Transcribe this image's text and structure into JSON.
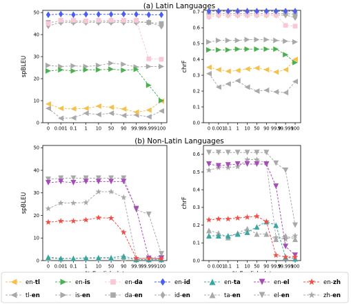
{
  "titles": [
    "(a) Latin Languages",
    "(b) Non-Latin Languages"
  ],
  "x_label": "x% English data",
  "chart_data": [
    {
      "type": "line",
      "title": "(a) Latin Languages",
      "xlabel": "",
      "ylabel": "spBLEU",
      "ylim": [
        0,
        51
      ],
      "yticks": [
        0,
        10,
        20,
        30,
        40,
        50
      ],
      "categories": [
        "0",
        "0.001",
        "0.1",
        "1",
        "10",
        "50",
        "90",
        "99.9",
        "99.999",
        "100"
      ],
      "series": [
        {
          "name": "en-tl",
          "values": [
            8.5,
            6.5,
            6.3,
            6.5,
            7.5,
            7.0,
            6.2,
            4.8,
            5.7,
            9.8
          ]
        },
        {
          "name": "tl-en",
          "values": [
            6.5,
            2.0,
            2.2,
            4.3,
            3.7,
            4.3,
            3.3,
            3.5,
            2.7,
            5.3
          ]
        },
        {
          "name": "en-is",
          "values": [
            23.5,
            24.0,
            23.5,
            24.0,
            24.0,
            24.3,
            23.8,
            24.2,
            17.0,
            10.0
          ]
        },
        {
          "name": "is-en",
          "values": [
            26.0,
            25.5,
            25.8,
            25.5,
            26.0,
            27.0,
            26.5,
            25.3,
            25.5,
            25.5
          ]
        },
        {
          "name": "en-da",
          "values": [
            45.0,
            46.5,
            46.5,
            46.2,
            46.5,
            46.5,
            46.5,
            46.5,
            29.0,
            28.8
          ]
        },
        {
          "name": "da-en",
          "values": [
            45.5,
            46.0,
            46.0,
            46.0,
            46.0,
            46.0,
            46.2,
            46.0,
            45.5,
            45.0
          ]
        },
        {
          "name": "en-id",
          "values": [
            49.0,
            49.3,
            49.0,
            49.2,
            49.2,
            49.2,
            49.3,
            49.2,
            49.0,
            49.0
          ]
        },
        {
          "name": "id-en",
          "values": [
            44.0,
            45.5,
            45.5,
            45.5,
            45.5,
            45.5,
            45.5,
            45.5,
            45.5,
            43.8
          ]
        }
      ]
    },
    {
      "type": "line",
      "xlabel": "",
      "ylabel": "chrF",
      "ylim": [
        0,
        0.71
      ],
      "yticks": [
        "0.0",
        "0.1",
        "0.2",
        "0.3",
        "0.4",
        "0.5",
        "0.6",
        "0.7"
      ],
      "categories": [
        "0",
        "0.001",
        "0.1",
        "1",
        "10",
        "50",
        "90",
        "99.9",
        "99.999",
        "100"
      ],
      "series": [
        {
          "name": "en-tl",
          "values": [
            0.35,
            0.335,
            0.325,
            0.33,
            0.34,
            0.345,
            0.335,
            0.32,
            0.335,
            0.4
          ]
        },
        {
          "name": "tl-en",
          "values": [
            0.31,
            0.225,
            0.245,
            0.265,
            0.225,
            0.2,
            0.205,
            0.195,
            0.19,
            0.26
          ]
        },
        {
          "name": "en-is",
          "values": [
            0.46,
            0.46,
            0.46,
            0.465,
            0.465,
            0.465,
            0.465,
            0.465,
            0.43,
            0.38
          ]
        },
        {
          "name": "is-en",
          "values": [
            0.51,
            0.52,
            0.52,
            0.52,
            0.525,
            0.525,
            0.525,
            0.52,
            0.515,
            0.51
          ]
        },
        {
          "name": "en-da",
          "values": [
            0.67,
            0.68,
            0.68,
            0.68,
            0.68,
            0.68,
            0.68,
            0.68,
            0.615,
            0.61
          ]
        },
        {
          "name": "da-en",
          "values": [
            0.685,
            0.69,
            0.69,
            0.69,
            0.69,
            0.69,
            0.69,
            0.69,
            0.69,
            0.685
          ]
        },
        {
          "name": "en-id",
          "values": [
            0.705,
            0.705,
            0.705,
            0.705,
            0.705,
            0.705,
            0.705,
            0.705,
            0.705,
            0.705
          ]
        },
        {
          "name": "id-en",
          "values": [
            0.67,
            0.68,
            0.68,
            0.68,
            0.68,
            0.68,
            0.68,
            0.68,
            0.68,
            0.665
          ]
        }
      ]
    },
    {
      "type": "line",
      "title": "(b) Non-Latin Languages",
      "xlabel": "x% English data",
      "ylabel": "spBLEU",
      "ylim": [
        0,
        51
      ],
      "yticks": [
        0,
        10,
        20,
        30,
        40,
        50
      ],
      "categories": [
        "0",
        "0.001",
        "0.1",
        "1",
        "10",
        "50",
        "90",
        "99.9",
        "99.999",
        "100"
      ],
      "series": [
        {
          "name": "en-ta",
          "values": [
            1.5,
            1.0,
            1.0,
            1.2,
            1.3,
            1.3,
            2.0,
            0.5,
            0.5,
            0.5
          ]
        },
        {
          "name": "ta-en",
          "values": [
            1.0,
            0.8,
            1.0,
            1.0,
            1.0,
            1.0,
            1.0,
            0.5,
            0.5,
            0.8
          ]
        },
        {
          "name": "en-el",
          "values": [
            34.5,
            35.0,
            34.5,
            35.0,
            35.0,
            35.0,
            35.0,
            23.0,
            1.0,
            1.0
          ]
        },
        {
          "name": "el-en",
          "values": [
            36.0,
            36.5,
            36.5,
            36.5,
            36.5,
            36.5,
            36.5,
            22.5,
            20.5,
            3.0
          ]
        },
        {
          "name": "en-zh",
          "values": [
            17.0,
            17.5,
            17.5,
            18.0,
            19.0,
            18.8,
            12.5,
            1.0,
            1.0,
            0.8
          ]
        },
        {
          "name": "zh-en",
          "values": [
            23.0,
            25.5,
            25.5,
            25.7,
            30.5,
            30.5,
            28.0,
            1.0,
            1.0,
            2.0
          ]
        }
      ]
    },
    {
      "type": "line",
      "xlabel": "x% English data",
      "ylabel": "chrF",
      "ylim": [
        0,
        0.65
      ],
      "yticks": [
        "0.0",
        "0.1",
        "0.2",
        "0.3",
        "0.4",
        "0.5",
        "0.6"
      ],
      "categories": [
        "0",
        "0.001",
        "0.1",
        "1",
        "10",
        "50",
        "90",
        "99.9",
        "99.999",
        "100"
      ],
      "series": [
        {
          "name": "en-ta",
          "values": [
            0.14,
            0.14,
            0.14,
            0.15,
            0.16,
            0.19,
            0.22,
            0.2,
            0.02,
            0.01
          ]
        },
        {
          "name": "ta-en",
          "values": [
            0.17,
            0.155,
            0.13,
            0.155,
            0.18,
            0.15,
            0.15,
            0.12,
            0.14,
            0.12
          ]
        },
        {
          "name": "en-el",
          "values": [
            0.545,
            0.535,
            0.54,
            0.545,
            0.545,
            0.545,
            0.545,
            0.42,
            0.08,
            0.03
          ]
        },
        {
          "name": "el-en",
          "values": [
            0.61,
            0.61,
            0.61,
            0.61,
            0.61,
            0.61,
            0.61,
            0.55,
            0.51,
            0.2
          ]
        },
        {
          "name": "en-zh",
          "values": [
            0.23,
            0.235,
            0.235,
            0.24,
            0.245,
            0.25,
            0.22,
            0.03,
            0.02,
            0.02
          ]
        },
        {
          "name": "zh-en",
          "values": [
            0.51,
            0.525,
            0.525,
            0.53,
            0.57,
            0.57,
            0.55,
            0.13,
            0.12,
            0.14
          ]
        }
      ]
    }
  ],
  "legend": [
    {
      "label": "en-tl",
      "plain": "en-",
      "bold": "tl",
      "color": "#f5c04c",
      "marker": "tri-left",
      "line": "#f5c04c"
    },
    {
      "label": "tl-en",
      "plain": "tl-",
      "bold": "en",
      "color": "#a9a9a9",
      "marker": "tri-left",
      "line": "#a9a9a9"
    },
    {
      "label": "en-is",
      "plain": "en-",
      "bold": "is",
      "color": "#4caf50",
      "marker": "tri-right",
      "line": "#4caf50"
    },
    {
      "label": "is-en",
      "plain": "is-",
      "bold": "en",
      "color": "#a9a9a9",
      "marker": "tri-right",
      "line": "#a9a9a9"
    },
    {
      "label": "en-da",
      "plain": "en-",
      "bold": "da",
      "color": "#f8c8d4",
      "marker": "square",
      "line": "#f8c8d4"
    },
    {
      "label": "da-en",
      "plain": "da-",
      "bold": "en",
      "color": "#a9a9a9",
      "marker": "square",
      "line": "#a9a9a9"
    },
    {
      "label": "en-id",
      "plain": "en-",
      "bold": "id",
      "color": "#4a5ef0",
      "marker": "diamond",
      "line": "#4a5ef0"
    },
    {
      "label": "id-en",
      "plain": "id-",
      "bold": "en",
      "color": "#a9a9a9",
      "marker": "diamond",
      "line": "#a9a9a9"
    },
    {
      "label": "en-ta",
      "plain": "en-",
      "bold": "ta",
      "color": "#3aa6a0",
      "marker": "tri-up",
      "line": "#3aa6a0"
    },
    {
      "label": "ta-en",
      "plain": "ta-",
      "bold": "en",
      "color": "#a9a9a9",
      "marker": "tri-up",
      "line": "#a9a9a9"
    },
    {
      "label": "en-el",
      "plain": "en-",
      "bold": "el",
      "color": "#a64cb8",
      "marker": "tri-down",
      "line": "#a64cb8"
    },
    {
      "label": "el-en",
      "plain": "el-",
      "bold": "en",
      "color": "#a9a9a9",
      "marker": "tri-down",
      "line": "#a9a9a9"
    },
    {
      "label": "en-zh",
      "plain": "en-",
      "bold": "zh",
      "color": "#f0504a",
      "marker": "star",
      "line": "#f0504a"
    },
    {
      "label": "zh-en",
      "plain": "zh-",
      "bold": "en",
      "color": "#a9a9a9",
      "marker": "star",
      "line": "#a9a9a9"
    }
  ]
}
